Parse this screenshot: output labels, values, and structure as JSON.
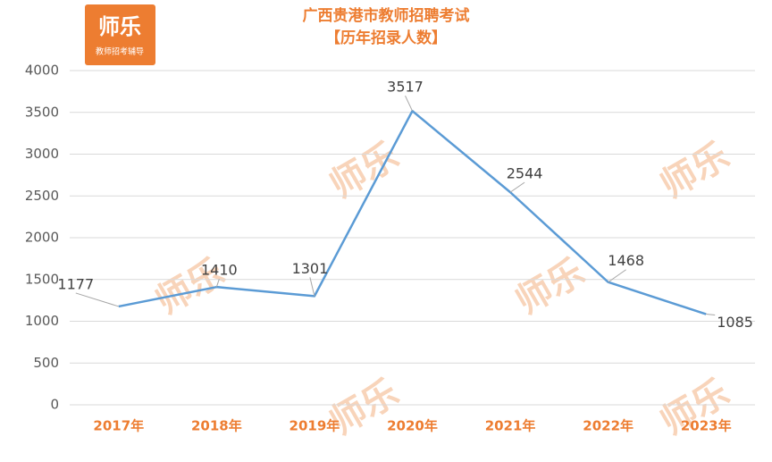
{
  "logo": {
    "name": "师乐",
    "tagline": "教师招考辅导"
  },
  "watermark": "师乐",
  "chart_data": {
    "type": "line",
    "title": "广西贵港市教师招聘考试",
    "subtitle": "【历年招录人数】",
    "categories": [
      "2017年",
      "2018年",
      "2019年",
      "2020年",
      "2021年",
      "2022年",
      "2023年"
    ],
    "values": [
      1177,
      1410,
      1301,
      3517,
      2544,
      1468,
      1085
    ],
    "color": "#5B9BD5",
    "ylim": [
      0,
      4000
    ],
    "yticks": [
      0,
      500,
      1000,
      1500,
      2000,
      2500,
      3000,
      3500,
      4000
    ],
    "grid": true
  }
}
